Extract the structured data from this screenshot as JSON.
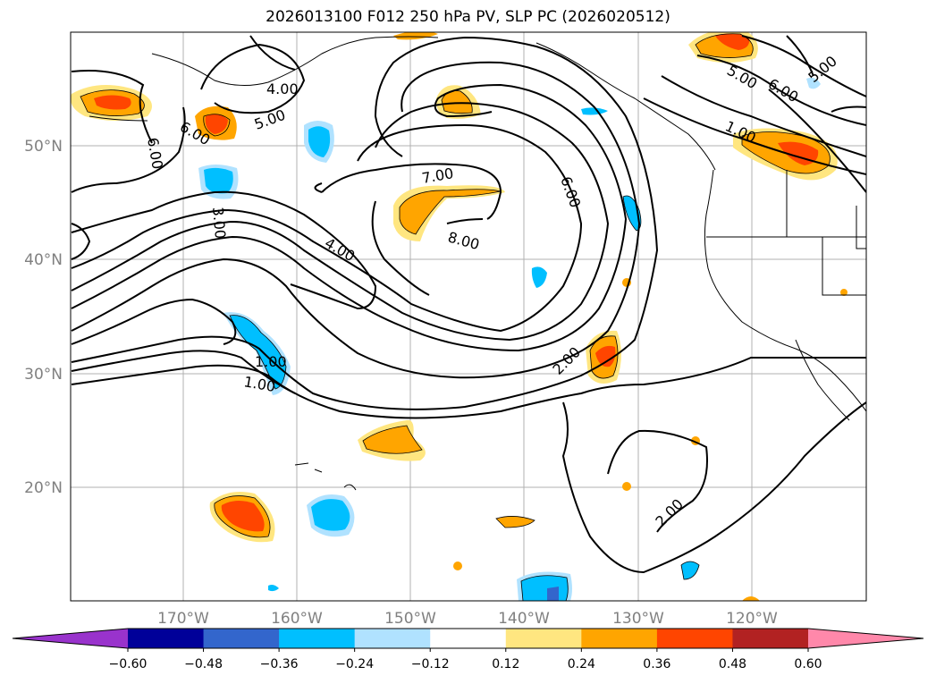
{
  "title": "2026013100 F012 250 hPa PV, SLP PC (2026020512)",
  "lat_labels": [
    "50°N",
    "40°N",
    "30°N",
    "20°N"
  ],
  "lon_labels": [
    "170°W",
    "160°W",
    "150°W",
    "140°W",
    "130°W",
    "120°W"
  ],
  "colorbar": {
    "ticks": [
      "−0.60",
      "−0.48",
      "−0.36",
      "−0.24",
      "−0.12",
      "0.12",
      "0.24",
      "0.36",
      "0.48",
      "0.60"
    ],
    "colors": [
      "#9933cc",
      "#000099",
      "#3366cc",
      "#00bfff",
      "#b0e2ff",
      "#ffffff",
      "#ffe680",
      "#ffa500",
      "#ff4500",
      "#b22222",
      "#ff88aa"
    ]
  },
  "contour_labels": [
    "4.00",
    "5.00",
    "6.00",
    "6.00",
    "3.00",
    "7.00",
    "8.00",
    "4.00",
    "6.00",
    "5.00",
    "6.00",
    "5.00",
    "1.00",
    "1.00",
    "1.00",
    "2.00",
    "2.00"
  ],
  "colors": {
    "gridline": "#b0b0b0",
    "contour": "#000000",
    "axis_text": "#808080"
  }
}
